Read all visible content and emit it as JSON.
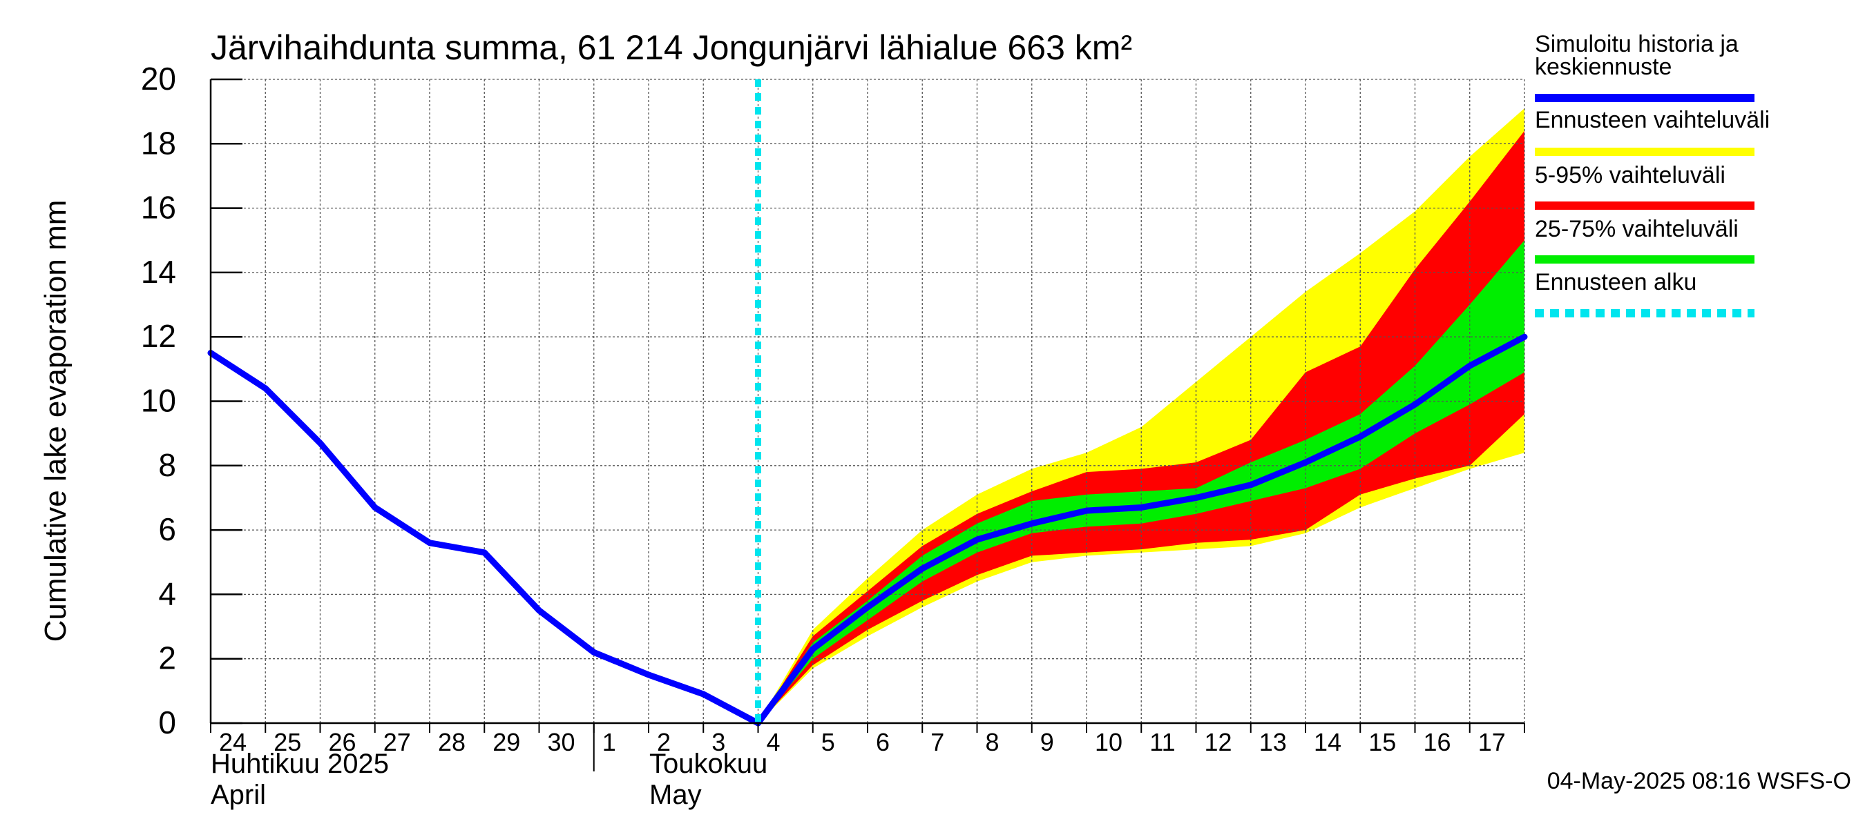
{
  "chart_data": {
    "type": "area",
    "title": "Järvihaihdunta summa, 61 214 Jongunjärvi lähialue 663 km²",
    "ylabel": "Cumulative lake evaporation   mm",
    "ylim": [
      0,
      20
    ],
    "y_ticks": [
      "0",
      "2",
      "4",
      "6",
      "8",
      "10",
      "12",
      "14",
      "16",
      "18",
      "20"
    ],
    "x_ticks": [
      "24",
      "25",
      "26",
      "27",
      "28",
      "29",
      "30",
      "1",
      "2",
      "3",
      "4",
      "5",
      "6",
      "7",
      "8",
      "9",
      "10",
      "11",
      "12",
      "13",
      "14",
      "15",
      "16",
      "17"
    ],
    "month_labels": {
      "april_fi": "Huhtikuu  2025",
      "april_en": "April",
      "may_fi": "Toukokuu",
      "may_en": "May"
    },
    "grid": true,
    "legend_position": "right",
    "legend": [
      {
        "label": "Simuloitu historia ja keskiennuste",
        "color": "#0000ff",
        "style": "solid"
      },
      {
        "label": "Ennusteen vaihteluväli",
        "color": "#ffff00",
        "style": "solid"
      },
      {
        "label": "5-95% vaihteluväli",
        "color": "#ff0000",
        "style": "solid"
      },
      {
        "label": "25-75% vaihteluväli",
        "color": "#00ee00",
        "style": "solid"
      },
      {
        "label": "Ennusteen alku",
        "color": "#00e5ee",
        "style": "dashed"
      }
    ],
    "x_domain": [
      "2025-04-24",
      "2025-05-18"
    ],
    "forecast_start": "2025-05-04",
    "history": {
      "x": [
        "2025-04-24",
        "2025-04-25",
        "2025-04-26",
        "2025-04-27",
        "2025-04-28",
        "2025-04-29",
        "2025-04-30",
        "2025-05-01",
        "2025-05-02",
        "2025-05-03",
        "2025-05-04"
      ],
      "y": [
        11.5,
        10.4,
        8.7,
        6.7,
        5.6,
        5.3,
        3.5,
        2.2,
        1.5,
        0.9,
        0.0
      ]
    },
    "forecast_x": [
      "2025-05-04",
      "2025-05-05",
      "2025-05-06",
      "2025-05-07",
      "2025-05-08",
      "2025-05-09",
      "2025-05-10",
      "2025-05-11",
      "2025-05-12",
      "2025-05-13",
      "2025-05-14",
      "2025-05-15",
      "2025-05-16",
      "2025-05-17",
      "2025-05-18"
    ],
    "series": [
      {
        "name": "Ennusteen vaihteluväli",
        "color": "#ffff00",
        "low": [
          0.0,
          1.7,
          2.7,
          3.6,
          4.4,
          5.0,
          5.2,
          5.3,
          5.4,
          5.5,
          5.9,
          6.7,
          7.3,
          7.9,
          8.4
        ],
        "high": [
          0.0,
          2.9,
          4.5,
          6.0,
          7.1,
          7.9,
          8.4,
          9.2,
          10.6,
          12.0,
          13.4,
          14.6,
          15.9,
          17.6,
          19.1
        ]
      },
      {
        "name": "5-95% vaihteluväli",
        "color": "#ff0000",
        "low": [
          0.0,
          1.8,
          2.9,
          3.8,
          4.6,
          5.2,
          5.3,
          5.4,
          5.6,
          5.7,
          6.0,
          7.1,
          7.6,
          8.0,
          9.6
        ],
        "high": [
          0.0,
          2.7,
          4.1,
          5.5,
          6.5,
          7.2,
          7.8,
          7.9,
          8.1,
          8.8,
          10.9,
          11.7,
          14.1,
          16.2,
          18.4
        ]
      },
      {
        "name": "25-75% vaihteluväli",
        "color": "#00ee00",
        "low": [
          0.0,
          2.0,
          3.2,
          4.4,
          5.3,
          5.9,
          6.1,
          6.2,
          6.5,
          6.9,
          7.3,
          7.9,
          9.0,
          9.9,
          10.9
        ],
        "high": [
          0.0,
          2.5,
          3.8,
          5.2,
          6.2,
          6.9,
          7.1,
          7.2,
          7.3,
          8.1,
          8.8,
          9.6,
          11.1,
          13.0,
          15.0
        ]
      },
      {
        "name": "Simuloitu historia ja keskiennuste",
        "color": "#0000ff",
        "values": [
          0.0,
          2.3,
          3.6,
          4.8,
          5.7,
          6.2,
          6.6,
          6.7,
          7.0,
          7.4,
          8.1,
          8.9,
          9.9,
          11.1,
          12.0
        ]
      }
    ]
  },
  "footer": {
    "timestamp": "04-May-2025 08:16 WSFS-O"
  }
}
